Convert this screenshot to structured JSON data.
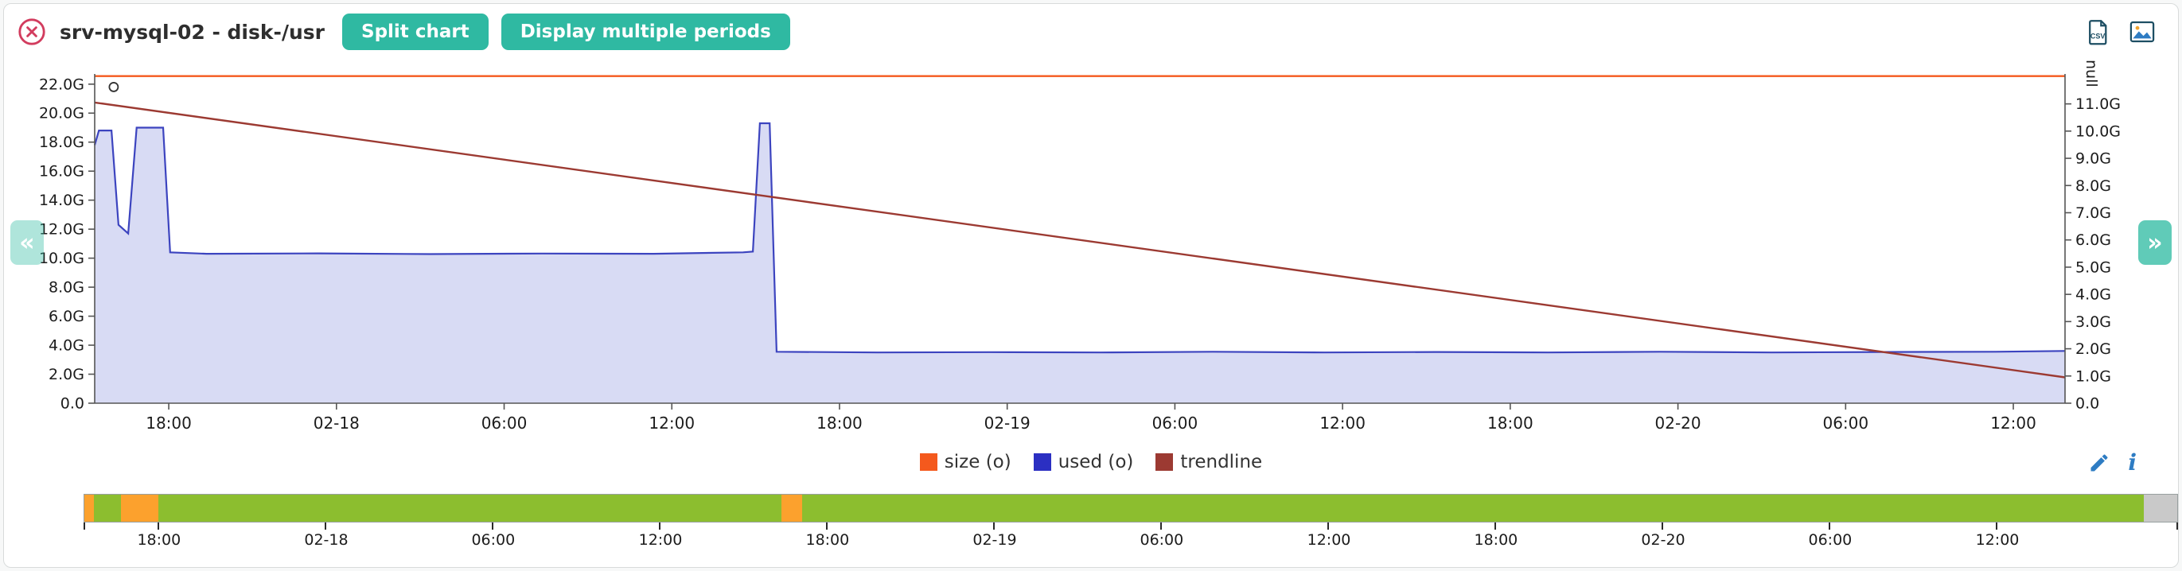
{
  "header": {
    "title": "srv-mysql-02 - disk-/usr",
    "buttons": [
      {
        "label": "Split chart"
      },
      {
        "label": "Display multiple periods"
      }
    ],
    "export": {
      "csv_label": "CSV"
    }
  },
  "nav": {
    "prev": "«",
    "next": "»"
  },
  "actions": {
    "info_glyph": "i"
  },
  "legend": {
    "items": [
      {
        "label": "size (o)",
        "color": "#f4591d"
      },
      {
        "label": "used (o)",
        "color": "#2b2fc2"
      },
      {
        "label": "trendline",
        "color": "#9c3a32"
      }
    ]
  },
  "chart_data": {
    "type": "area",
    "title": "srv-mysql-02 - disk-/usr",
    "t_max": 70.5,
    "y_left": {
      "max": 22.7,
      "tick_values": [
        0,
        2,
        4,
        6,
        8,
        10,
        12,
        14,
        16,
        18,
        20,
        22
      ],
      "tick_labels": [
        "0.0",
        "2.0G",
        "4.0G",
        "6.0G",
        "8.0G",
        "10.0G",
        "12.0G",
        "14.0G",
        "16.0G",
        "18.0G",
        "20.0G",
        "22.0G"
      ]
    },
    "y_right": {
      "label": "null",
      "max": 12.1,
      "tick_values": [
        0,
        1,
        2,
        3,
        4,
        5,
        6,
        7,
        8,
        9,
        10,
        11
      ],
      "tick_labels": [
        "0.0",
        "1.0G",
        "2.0G",
        "3.0G",
        "4.0G",
        "5.0G",
        "6.0G",
        "7.0G",
        "8.0G",
        "9.0G",
        "10.0G",
        "11.0G"
      ]
    },
    "x_ticks": [
      {
        "t": 2.65,
        "label": "18:00"
      },
      {
        "t": 8.65,
        "label": "02-18"
      },
      {
        "t": 14.65,
        "label": "06:00"
      },
      {
        "t": 20.65,
        "label": "12:00"
      },
      {
        "t": 26.65,
        "label": "18:00"
      },
      {
        "t": 32.65,
        "label": "02-19"
      },
      {
        "t": 38.65,
        "label": "06:00"
      },
      {
        "t": 44.65,
        "label": "12:00"
      },
      {
        "t": 50.65,
        "label": "18:00"
      },
      {
        "t": 56.65,
        "label": "02-20"
      },
      {
        "t": 62.65,
        "label": "06:00"
      },
      {
        "t": 68.65,
        "label": "12:00"
      }
    ],
    "series": [
      {
        "name": "used (o)",
        "type": "area",
        "axis": "left",
        "color": "#3c44bf",
        "fill": "#d8dbf4",
        "points": [
          [
            0,
            17.8
          ],
          [
            0.15,
            18.8
          ],
          [
            0.6,
            18.8
          ],
          [
            0.85,
            12.3
          ],
          [
            1.2,
            11.7
          ],
          [
            1.5,
            19.0
          ],
          [
            2.45,
            19.0
          ],
          [
            2.7,
            10.4
          ],
          [
            4,
            10.3
          ],
          [
            8,
            10.33
          ],
          [
            12,
            10.28
          ],
          [
            16,
            10.32
          ],
          [
            20,
            10.3
          ],
          [
            23.2,
            10.4
          ],
          [
            23.55,
            10.45
          ],
          [
            23.8,
            19.3
          ],
          [
            24.15,
            19.3
          ],
          [
            24.4,
            3.55
          ],
          [
            28,
            3.5
          ],
          [
            32,
            3.52
          ],
          [
            36,
            3.5
          ],
          [
            40,
            3.55
          ],
          [
            44,
            3.5
          ],
          [
            48,
            3.53
          ],
          [
            52,
            3.5
          ],
          [
            56,
            3.55
          ],
          [
            60,
            3.5
          ],
          [
            64,
            3.53
          ],
          [
            68,
            3.55
          ],
          [
            70.5,
            3.6
          ]
        ]
      },
      {
        "name": "trendline",
        "type": "line",
        "axis": "right",
        "color": "#9c3a32",
        "points": [
          [
            0,
            11.05
          ],
          [
            70.5,
            0.95
          ]
        ]
      },
      {
        "name": "size (o)",
        "type": "line",
        "axis": "left",
        "color": "#f4591d",
        "points": [
          [
            0,
            22.55
          ],
          [
            70.5,
            22.55
          ]
        ]
      }
    ],
    "marker": {
      "t": 0.68,
      "value": 21.8,
      "axis": "left"
    }
  },
  "overview": {
    "segments": [
      {
        "from": 0,
        "to": 0.45,
        "color": "#fca12d"
      },
      {
        "from": 0.45,
        "to": 1.75,
        "color": "#8cbe2f"
      },
      {
        "from": 1.75,
        "to": 3.55,
        "color": "#fca12d"
      },
      {
        "from": 3.55,
        "to": 33.3,
        "color": "#8cbe2f"
      },
      {
        "from": 33.3,
        "to": 34.3,
        "color": "#fca12d"
      },
      {
        "from": 34.3,
        "to": 98.4,
        "color": "#8cbe2f"
      },
      {
        "from": 98.4,
        "to": 100,
        "color": "#c9c9c9"
      }
    ],
    "ticks": [
      {
        "pct": 0,
        "label": ""
      },
      {
        "pct": 3.53,
        "label": "18:00"
      },
      {
        "pct": 11.52,
        "label": "02-18"
      },
      {
        "pct": 19.5,
        "label": "06:00"
      },
      {
        "pct": 27.49,
        "label": "12:00"
      },
      {
        "pct": 35.47,
        "label": "18:00"
      },
      {
        "pct": 43.46,
        "label": "02-19"
      },
      {
        "pct": 51.44,
        "label": "06:00"
      },
      {
        "pct": 59.43,
        "label": "12:00"
      },
      {
        "pct": 67.41,
        "label": "18:00"
      },
      {
        "pct": 75.4,
        "label": "02-20"
      },
      {
        "pct": 83.38,
        "label": "06:00"
      },
      {
        "pct": 91.37,
        "label": "12:00"
      },
      {
        "pct": 100,
        "label": ""
      }
    ]
  },
  "colors": {
    "accent": "#2fb9a2",
    "close": "#d23c5e",
    "icon_blue": "#2e7cc3",
    "icon_dark": "#1d4e63"
  }
}
